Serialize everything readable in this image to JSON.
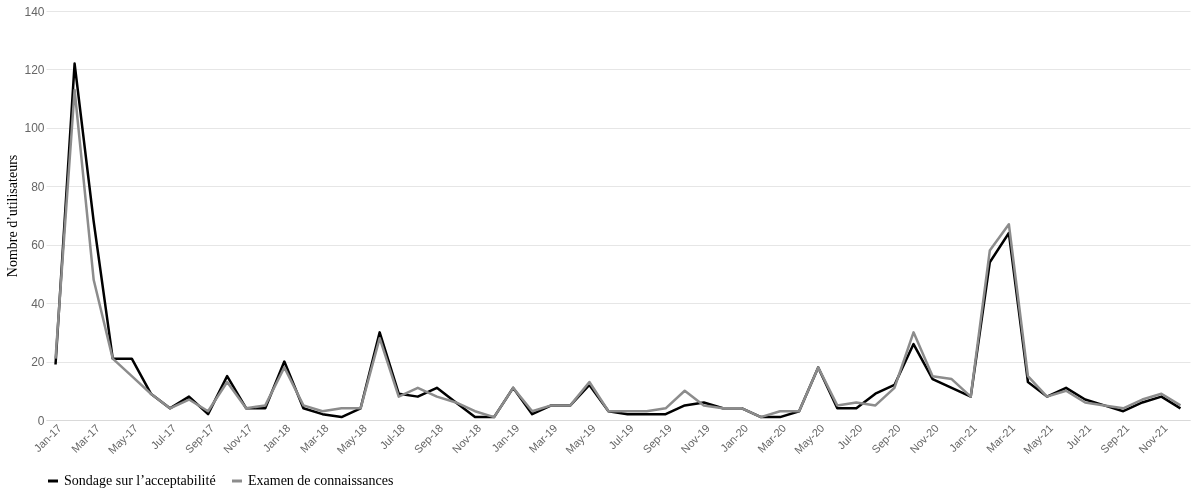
{
  "chart_data": {
    "type": "line",
    "ylabel": "Nombre d’utilisateurs",
    "categories": [
      "Jan-17",
      null,
      "Mar-17",
      null,
      "May-17",
      null,
      "Jul-17",
      null,
      "Sep-17",
      null,
      "Nov-17",
      null,
      "Jan-18",
      null,
      "Mar-18",
      null,
      "May-18",
      null,
      "Jul-18",
      null,
      "Sep-18",
      null,
      "Nov-18",
      null,
      "Jan-19",
      null,
      "Mar-19",
      null,
      "May-19",
      null,
      "Jul-19",
      null,
      "Sep-19",
      null,
      "Nov-19",
      null,
      "Jan-20",
      null,
      "Mar-20",
      null,
      "May-20",
      null,
      "Jul-20",
      null,
      "Sep-20",
      null,
      "Nov-20",
      null,
      "Jan-21",
      null,
      "Mar-21",
      null,
      "May-21",
      null,
      "Jul-21",
      null,
      "Sep-21",
      null,
      "Nov-21",
      null
    ],
    "series": [
      {
        "name": "Sondage sur l’acceptabilité",
        "color": "#000000",
        "values": [
          19,
          122,
          68,
          21,
          21,
          9,
          4,
          8,
          2,
          15,
          4,
          4,
          20,
          4,
          2,
          1,
          4,
          30,
          9,
          8,
          11,
          6,
          1,
          1,
          11,
          2,
          5,
          5,
          12,
          3,
          2,
          2,
          2,
          5,
          6,
          4,
          4,
          1,
          1,
          3,
          18,
          4,
          4,
          9,
          12,
          26,
          14,
          11,
          8,
          54,
          64,
          13,
          8,
          11,
          7,
          5,
          3,
          6,
          8,
          4
        ]
      },
      {
        "name": "Examen de connaissances",
        "color": "#8c8c8c",
        "values": [
          21,
          113,
          48,
          21,
          15,
          9,
          4,
          7,
          3,
          13,
          4,
          5,
          18,
          5,
          3,
          4,
          4,
          28,
          8,
          11,
          8,
          6,
          3,
          1,
          11,
          3,
          5,
          5,
          13,
          3,
          3,
          3,
          4,
          10,
          5,
          4,
          4,
          1,
          3,
          3,
          18,
          5,
          6,
          5,
          11,
          30,
          15,
          14,
          8,
          58,
          67,
          15,
          8,
          10,
          6,
          5,
          4,
          7,
          9,
          5
        ]
      }
    ],
    "ylim": [
      0,
      140
    ],
    "yticks": [
      0,
      20,
      40,
      60,
      80,
      100,
      120,
      140
    ],
    "grid": "y",
    "legend": "bottom",
    "line_style": "solid",
    "marker": "none"
  }
}
